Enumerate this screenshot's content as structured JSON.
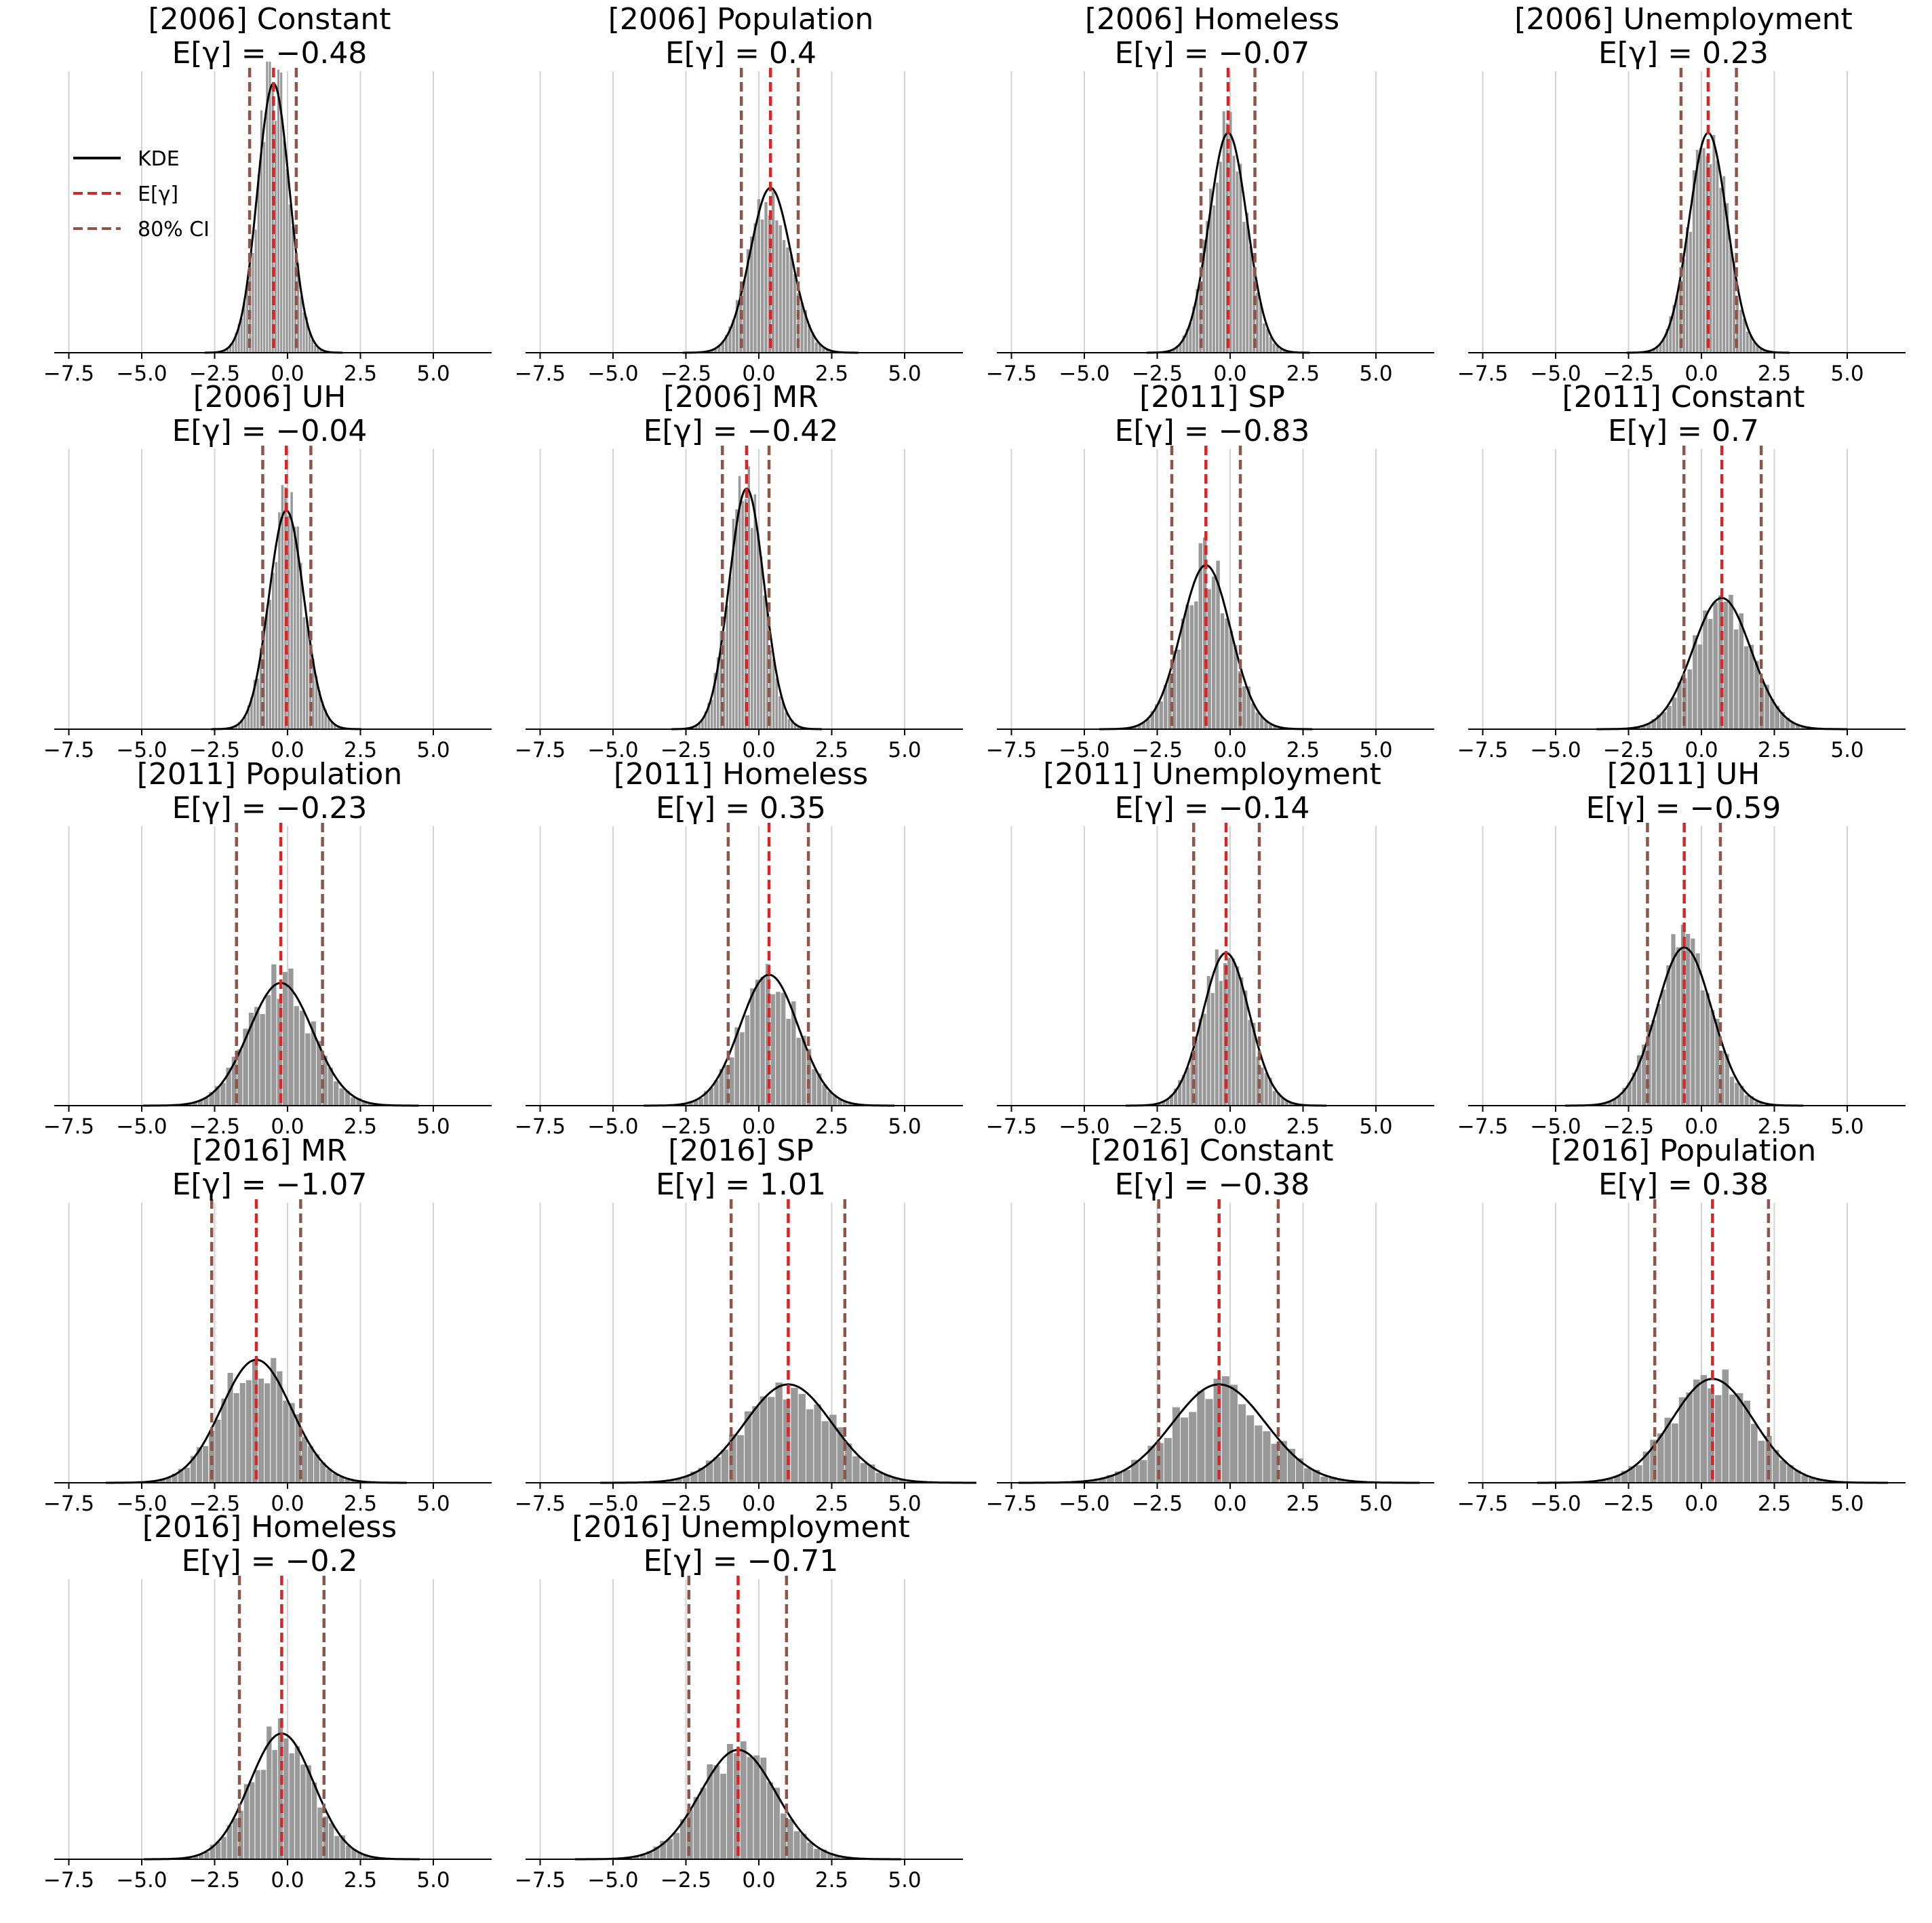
{
  "figure": {
    "type": "histogram-grid",
    "legend": [
      {
        "key": "kde",
        "label": "KDE",
        "color": "#000000"
      },
      {
        "key": "mean",
        "label": "E[γ]",
        "color": "#d62728"
      },
      {
        "key": "ci",
        "label": "80% CI",
        "color": "#8c564b"
      }
    ],
    "colors": {
      "hist": "#999999",
      "grid": "#d3d3d3",
      "axis": "#000000"
    }
  },
  "chart_data": [
    {
      "type": "histogram",
      "title": "[2006] Constant",
      "mean_label": "E[γ] = −0.48",
      "mean": -0.48,
      "ci": [
        -1.3,
        0.3
      ],
      "sd": 0.55,
      "peak": 0.98,
      "xlim": [
        -8.0,
        7.0
      ],
      "xticks": [
        -7.5,
        -5.0,
        -2.5,
        0.0,
        2.5,
        5.0
      ],
      "xtick_labels": [
        "−7.5",
        "−5.0",
        "−2.5",
        "0.0",
        "2.5",
        "5.0"
      ],
      "ylabel": ""
    },
    {
      "type": "histogram",
      "title": "[2006] Population",
      "mean_label": "E[γ] = 0.4",
      "mean": 0.4,
      "ci": [
        -0.6,
        1.35
      ],
      "sd": 0.7,
      "peak": 0.6,
      "xlim": [
        -8.0,
        7.0
      ],
      "xticks": [
        -7.5,
        -5.0,
        -2.5,
        0.0,
        2.5,
        5.0
      ],
      "xtick_labels": [
        "−7.5",
        "−5.0",
        "−2.5",
        "0.0",
        "2.5",
        "5.0"
      ],
      "ylabel": ""
    },
    {
      "type": "histogram",
      "title": "[2006] Homeless",
      "mean_label": "E[γ] = −0.07",
      "mean": -0.07,
      "ci": [
        -1.0,
        0.85
      ],
      "sd": 0.65,
      "peak": 0.8,
      "xlim": [
        -8.0,
        7.0
      ],
      "xticks": [
        -7.5,
        -5.0,
        -2.5,
        0.0,
        2.5,
        5.0
      ],
      "xtick_labels": [
        "−7.5",
        "−5.0",
        "−2.5",
        "0.0",
        "2.5",
        "5.0"
      ],
      "ylabel": ""
    },
    {
      "type": "histogram",
      "title": "[2006] Unemployment",
      "mean_label": "E[γ] = 0.23",
      "mean": 0.23,
      "ci": [
        -0.7,
        1.2
      ],
      "sd": 0.65,
      "peak": 0.8,
      "xlim": [
        -8.0,
        7.0
      ],
      "xticks": [
        -7.5,
        -5.0,
        -2.5,
        0.0,
        2.5,
        5.0
      ],
      "xtick_labels": [
        "−7.5",
        "−5.0",
        "−2.5",
        "0.0",
        "2.5",
        "5.0"
      ],
      "ylabel": ""
    },
    {
      "type": "histogram",
      "title": "[2006] UH",
      "mean_label": "E[γ] = −0.04",
      "mean": -0.04,
      "ci": [
        -0.85,
        0.8
      ],
      "sd": 0.6,
      "peak": 0.8,
      "xlim": [
        -8.0,
        7.0
      ],
      "xticks": [
        -7.5,
        -5.0,
        -2.5,
        0.0,
        2.5,
        5.0
      ],
      "xtick_labels": [
        "−7.5",
        "−5.0",
        "−2.5",
        "0.0",
        "2.5",
        "5.0"
      ],
      "ylabel": ""
    },
    {
      "type": "histogram",
      "title": "[2006] MR",
      "mean_label": "E[γ] = −0.42",
      "mean": -0.42,
      "ci": [
        -1.25,
        0.35
      ],
      "sd": 0.6,
      "peak": 0.88,
      "xlim": [
        -8.0,
        7.0
      ],
      "xticks": [
        -7.5,
        -5.0,
        -2.5,
        0.0,
        2.5,
        5.0
      ],
      "xtick_labels": [
        "−7.5",
        "−5.0",
        "−2.5",
        "0.0",
        "2.5",
        "5.0"
      ],
      "ylabel": ""
    },
    {
      "type": "histogram",
      "title": "[2011] SP",
      "mean_label": "E[γ] = −0.83",
      "mean": -0.83,
      "ci": [
        -2.0,
        0.35
      ],
      "sd": 0.85,
      "peak": 0.6,
      "xlim": [
        -8.0,
        7.0
      ],
      "xticks": [
        -7.5,
        -5.0,
        -2.5,
        0.0,
        2.5,
        5.0
      ],
      "xtick_labels": [
        "−7.5",
        "−5.0",
        "−2.5",
        "0.0",
        "2.5",
        "5.0"
      ],
      "ylabel": ""
    },
    {
      "type": "histogram",
      "title": "[2011] Constant",
      "mean_label": "E[γ] = 0.7",
      "mean": 0.7,
      "ci": [
        -0.6,
        2.05
      ],
      "sd": 1.0,
      "peak": 0.48,
      "xlim": [
        -8.0,
        7.0
      ],
      "xticks": [
        -7.5,
        -5.0,
        -2.5,
        0.0,
        2.5,
        5.0
      ],
      "xtick_labels": [
        "−7.5",
        "−5.0",
        "−2.5",
        "0.0",
        "2.5",
        "5.0"
      ],
      "ylabel": ""
    },
    {
      "type": "histogram",
      "title": "[2011] Population",
      "mean_label": "E[γ] = −0.23",
      "mean": -0.23,
      "ci": [
        -1.75,
        1.2
      ],
      "sd": 1.1,
      "peak": 0.45,
      "xlim": [
        -8.0,
        7.0
      ],
      "xticks": [
        -7.5,
        -5.0,
        -2.5,
        0.0,
        2.5,
        5.0
      ],
      "xtick_labels": [
        "−7.5",
        "−5.0",
        "−2.5",
        "0.0",
        "2.5",
        "5.0"
      ],
      "ylabel": ""
    },
    {
      "type": "histogram",
      "title": "[2011] Homeless",
      "mean_label": "E[γ] = 0.35",
      "mean": 0.35,
      "ci": [
        -1.05,
        1.7
      ],
      "sd": 1.0,
      "peak": 0.48,
      "xlim": [
        -8.0,
        7.0
      ],
      "xticks": [
        -7.5,
        -5.0,
        -2.5,
        0.0,
        2.5,
        5.0
      ],
      "xtick_labels": [
        "−7.5",
        "−5.0",
        "−2.5",
        "0.0",
        "2.5",
        "5.0"
      ],
      "ylabel": ""
    },
    {
      "type": "histogram",
      "title": "[2011] Unemployment",
      "mean_label": "E[γ] = −0.14",
      "mean": -0.14,
      "ci": [
        -1.25,
        1.0
      ],
      "sd": 0.8,
      "peak": 0.56,
      "xlim": [
        -8.0,
        7.0
      ],
      "xticks": [
        -7.5,
        -5.0,
        -2.5,
        0.0,
        2.5,
        5.0
      ],
      "xtick_labels": [
        "−7.5",
        "−5.0",
        "−2.5",
        "0.0",
        "2.5",
        "5.0"
      ],
      "ylabel": ""
    },
    {
      "type": "histogram",
      "title": "[2011] UH",
      "mean_label": "E[γ] = −0.59",
      "mean": -0.59,
      "ci": [
        -1.85,
        0.65
      ],
      "sd": 0.95,
      "peak": 0.58,
      "xlim": [
        -8.0,
        7.0
      ],
      "xticks": [
        -7.5,
        -5.0,
        -2.5,
        0.0,
        2.5,
        5.0
      ],
      "xtick_labels": [
        "−7.5",
        "−5.0",
        "−2.5",
        "0.0",
        "2.5",
        "5.0"
      ],
      "ylabel": ""
    },
    {
      "type": "histogram",
      "title": "[2016] MR",
      "mean_label": "E[γ] = −1.07",
      "mean": -1.07,
      "ci": [
        -2.6,
        0.45
      ],
      "sd": 1.2,
      "peak": 0.45,
      "xlim": [
        -8.0,
        7.0
      ],
      "xticks": [
        -7.5,
        -5.0,
        -2.5,
        0.0,
        2.5,
        5.0
      ],
      "xtick_labels": [
        "−7.5",
        "−5.0",
        "−2.5",
        "0.0",
        "2.5",
        "5.0"
      ],
      "ylabel": ""
    },
    {
      "type": "histogram",
      "title": "[2016] SP",
      "mean_label": "E[γ] = 1.01",
      "mean": 1.01,
      "ci": [
        -0.95,
        2.95
      ],
      "sd": 1.5,
      "peak": 0.36,
      "xlim": [
        -8.0,
        7.0
      ],
      "xticks": [
        -7.5,
        -5.0,
        -2.5,
        0.0,
        2.5,
        5.0
      ],
      "xtick_labels": [
        "−7.5",
        "−5.0",
        "−2.5",
        "0.0",
        "2.5",
        "5.0"
      ],
      "ylabel": ""
    },
    {
      "type": "histogram",
      "title": "[2016] Constant",
      "mean_label": "E[γ] = −0.38",
      "mean": -0.38,
      "ci": [
        -2.45,
        1.65
      ],
      "sd": 1.6,
      "peak": 0.36,
      "xlim": [
        -8.0,
        7.0
      ],
      "xticks": [
        -7.5,
        -5.0,
        -2.5,
        0.0,
        2.5,
        5.0
      ],
      "xtick_labels": [
        "−7.5",
        "−5.0",
        "−2.5",
        "0.0",
        "2.5",
        "5.0"
      ],
      "ylabel": ""
    },
    {
      "type": "histogram",
      "title": "[2016] Population",
      "mean_label": "E[γ] = 0.38",
      "mean": 0.38,
      "ci": [
        -1.6,
        2.3
      ],
      "sd": 1.4,
      "peak": 0.38,
      "xlim": [
        -8.0,
        7.0
      ],
      "xticks": [
        -7.5,
        -5.0,
        -2.5,
        0.0,
        2.5,
        5.0
      ],
      "xtick_labels": [
        "−7.5",
        "−5.0",
        "−2.5",
        "0.0",
        "2.5",
        "5.0"
      ],
      "ylabel": ""
    },
    {
      "type": "histogram",
      "title": "[2016] Homeless",
      "mean_label": "E[γ] = −0.2",
      "mean": -0.2,
      "ci": [
        -1.65,
        1.25
      ],
      "sd": 1.1,
      "peak": 0.46,
      "xlim": [
        -8.0,
        7.0
      ],
      "xticks": [
        -7.5,
        -5.0,
        -2.5,
        0.0,
        2.5,
        5.0
      ],
      "xtick_labels": [
        "−7.5",
        "−5.0",
        "−2.5",
        "0.0",
        "2.5",
        "5.0"
      ],
      "ylabel": ""
    },
    {
      "type": "histogram",
      "title": "[2016] Unemployment",
      "mean_label": "E[γ] = −0.71",
      "mean": -0.71,
      "ci": [
        -2.4,
        0.95
      ],
      "sd": 1.3,
      "peak": 0.4,
      "xlim": [
        -8.0,
        7.0
      ],
      "xticks": [
        -7.5,
        -5.0,
        -2.5,
        0.0,
        2.5,
        5.0
      ],
      "xtick_labels": [
        "−7.5",
        "−5.0",
        "−2.5",
        "0.0",
        "2.5",
        "5.0"
      ],
      "ylabel": ""
    }
  ]
}
